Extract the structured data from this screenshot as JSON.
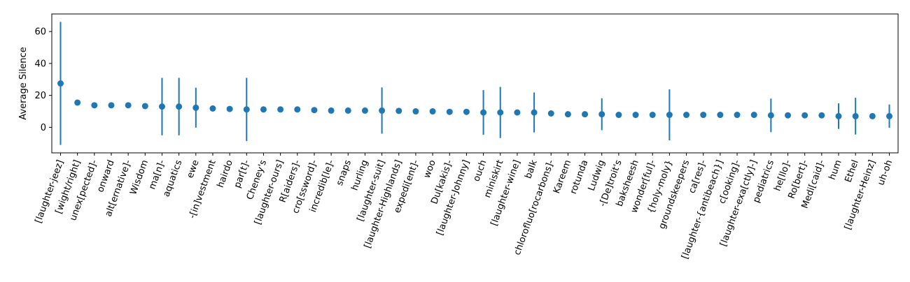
{
  "chart_data": {
    "type": "scatter",
    "title": "",
    "xlabel": "",
    "ylabel": "Average Silence",
    "ylim": [
      -16,
      71
    ],
    "yticks": [
      0,
      20,
      40,
      60
    ],
    "grid": false,
    "legend": "none",
    "colors": {
      "marker": "#1f77b4",
      "axis": "#000000"
    },
    "categories": [
      "[laughter-jeez]",
      "[wight/right]",
      "unex[pected]-",
      "onward",
      "alt[ernative]-",
      "Wisdom",
      "ma[n]-",
      "aquatics",
      "ewe",
      "-[in]vestment",
      "hairdo",
      "par[t]-",
      "Cheney's",
      "[laughter-ours]",
      "R[aiders]-",
      "cro[ssword]-",
      "incredib[le]-",
      "snaps",
      "hurling",
      "[laughter-suit]",
      "[laughter-Highlands]",
      "expedi[ent]-",
      "woo",
      "Du[kakis]-",
      "[laughter-Johnny]",
      "ouch",
      "miniskirt",
      "[laughter-wine]",
      "balk",
      "chlorofluo[rocarbons]-",
      "Kareem",
      "rotunda",
      "Ludwig",
      "-[De]troit's",
      "baksheesh",
      "wonder[ful]-",
      "{holy-moly}",
      "groundskeepers",
      "ca[res]-",
      "[laughter-{antibeach}]",
      "c[ooking]-",
      "[laughter-exa[ctly]-]",
      "pediatrics",
      "he[llo]-",
      "Ro[bert]-",
      "Medi[caid]-",
      "hum",
      "Ethel",
      "[laughter-Heinz]",
      "uh-oh"
    ],
    "values": [
      27.5,
      15.5,
      13.8,
      13.8,
      13.8,
      13.3,
      13.0,
      13.0,
      12.3,
      11.8,
      11.5,
      11.2,
      11.2,
      11.2,
      11.2,
      10.8,
      10.5,
      10.5,
      10.5,
      10.5,
      10.3,
      10.0,
      10.0,
      9.7,
      9.7,
      9.3,
      9.3,
      9.3,
      9.3,
      8.7,
      8.2,
      8.2,
      8.2,
      7.8,
      7.8,
      7.8,
      7.8,
      7.8,
      7.8,
      7.8,
      7.8,
      7.8,
      7.5,
      7.5,
      7.5,
      7.5,
      7.0,
      7.0,
      7.0,
      7.0
    ],
    "errors": [
      38.5,
      0,
      0,
      0,
      0,
      0,
      18.0,
      18.0,
      12.5,
      0,
      0,
      19.8,
      0,
      0,
      0,
      0,
      0,
      0,
      0,
      14.5,
      0,
      0,
      0,
      0,
      0,
      14.0,
      16.0,
      0,
      12.5,
      0,
      0,
      0,
      10.0,
      0,
      0,
      0,
      16.0,
      0,
      0,
      0,
      0,
      0,
      10.5,
      0,
      0,
      0,
      8.0,
      11.5,
      0,
      7.3
    ]
  }
}
